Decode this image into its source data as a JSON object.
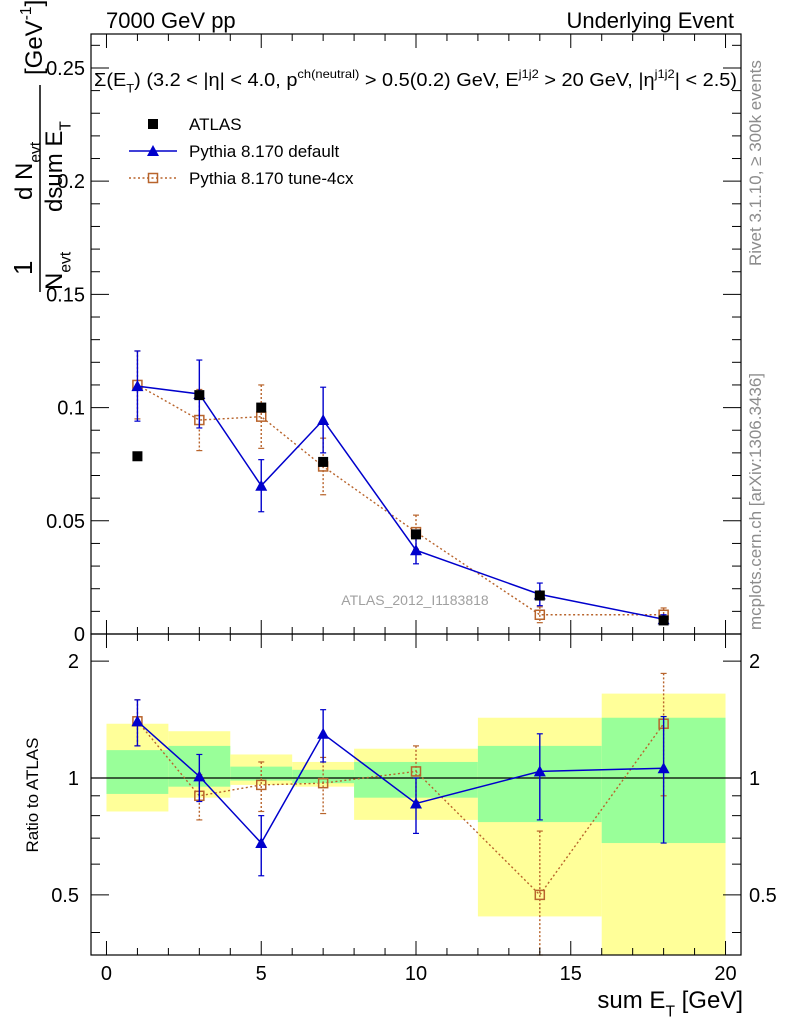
{
  "header": {
    "left": "7000 GeV pp",
    "right": "Underlying Event"
  },
  "side_texts": {
    "rivet": "Rivet 3.1.10, ≥ 300k events",
    "mcplots": "mcplots.cern.ch [arXiv:1306.3436]"
  },
  "chart_data": [
    {
      "type": "scatter",
      "title": "Σ(E_T) (3.2 < |η| < 4.0, p_T^ch(neutral) > 0.5(0.2) GeV, E_T^j1j2 > 20 GeV, |η^j1j2| < 2.5)",
      "xlabel": "sum E_T [GeV]",
      "ylabel": "1/N_evt dN_evt/dsum E_T [GeV^-1]",
      "watermark": "ATLAS_2012_I1183818",
      "xlim": [
        -0.5,
        20.5
      ],
      "ylim": [
        0,
        0.265
      ],
      "yticks": [
        0,
        0.05,
        0.1,
        0.15,
        0.2,
        0.25
      ],
      "ytick_labels": [
        "0",
        "0.05",
        "0.1",
        "0.15",
        "0.2",
        "0.25"
      ],
      "legend_position": "top-left",
      "series": [
        {
          "name": "ATLAS",
          "style": "filled-square",
          "color": "#000000",
          "x": [
            1,
            3,
            5,
            7,
            10,
            14,
            18
          ],
          "y": [
            0.0785,
            0.1055,
            0.1,
            0.076,
            0.044,
            0.017,
            0.006
          ],
          "err": [
            0.001,
            0.001,
            0.001,
            0.001,
            0.001,
            0.002,
            0.0012
          ]
        },
        {
          "name": "Pythia 8.170 default",
          "style": "triangle-line",
          "color": "#0000cc",
          "x": [
            1,
            3,
            5,
            7,
            10,
            14,
            18
          ],
          "y": [
            0.1095,
            0.106,
            0.0655,
            0.0945,
            0.037,
            0.0175,
            0.0065
          ],
          "err": [
            0.0155,
            0.015,
            0.0115,
            0.0145,
            0.006,
            0.005,
            0.002
          ]
        },
        {
          "name": "Pythia 8.170 tune-4cx",
          "style": "open-square-dotted",
          "color": "#b8642c",
          "x": [
            1,
            3,
            5,
            7,
            10,
            14,
            18
          ],
          "y": [
            0.11,
            0.0945,
            0.096,
            0.074,
            0.045,
            0.0085,
            0.0085
          ],
          "err": [
            0.015,
            0.0135,
            0.014,
            0.0125,
            0.0075,
            0.0035,
            0.003
          ]
        }
      ]
    },
    {
      "type": "scatter",
      "title": "",
      "xlabel": "sum E_T [GeV]",
      "ylabel": "Ratio to ATLAS",
      "xlim": [
        -0.5,
        20.5
      ],
      "ylim": [
        0.35,
        2.35
      ],
      "yticks": [
        0.5,
        1,
        2
      ],
      "ytick_labels": [
        "0.5",
        "1",
        "2"
      ],
      "xticks": [
        0,
        5,
        10,
        15,
        20
      ],
      "xtick_labels": [
        "0",
        "5",
        "10",
        "15",
        "20"
      ],
      "bands": {
        "bin_edges": [
          0,
          2,
          4,
          6,
          8,
          12,
          16,
          20
        ],
        "yellow_low": [
          0.82,
          0.89,
          0.96,
          0.95,
          0.78,
          0.44,
          0.35
        ],
        "yellow_high": [
          1.38,
          1.32,
          1.15,
          1.1,
          1.19,
          1.43,
          1.65
        ],
        "green_low": [
          0.91,
          0.95,
          0.985,
          0.97,
          0.89,
          0.77,
          0.68
        ],
        "green_high": [
          1.18,
          1.21,
          1.07,
          1.05,
          1.1,
          1.21,
          1.43
        ],
        "yellow_color": "#ffff99",
        "green_color": "#99ff99"
      },
      "series": [
        {
          "name": "Pythia 8.170 default",
          "style": "triangle-line",
          "color": "#0000cc",
          "x": [
            1,
            3,
            5,
            7,
            10,
            14,
            18
          ],
          "y": [
            1.4,
            1.01,
            0.68,
            1.3,
            0.86,
            1.04,
            1.06
          ],
          "err": [
            0.19,
            0.14,
            0.12,
            0.2,
            0.14,
            0.26,
            0.38
          ]
        },
        {
          "name": "Pythia 8.170 tune-4cx",
          "style": "open-square-dotted",
          "color": "#b8642c",
          "x": [
            1,
            3,
            5,
            7,
            10,
            14,
            18
          ],
          "y": [
            1.4,
            0.9,
            0.96,
            0.97,
            1.04,
            0.5,
            1.38
          ],
          "err": [
            0.19,
            0.12,
            0.14,
            0.16,
            0.17,
            0.23,
            0.48
          ]
        }
      ]
    }
  ]
}
